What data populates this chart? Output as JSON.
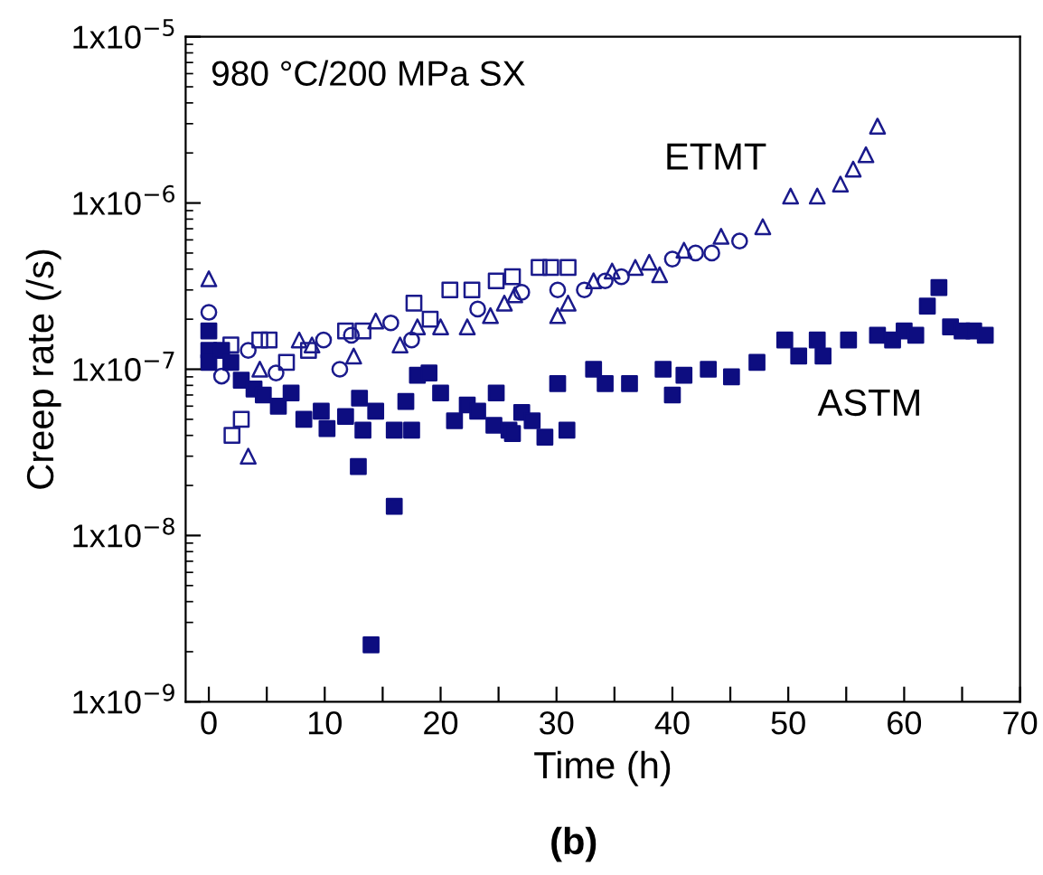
{
  "chart_data": {
    "type": "scatter",
    "title": "980 °C/200 MPa SX",
    "xlabel": "Time (h)",
    "ylabel": "Creep rate (/s)",
    "log": "y",
    "xlim": [
      -2,
      70
    ],
    "ylim": [
      1e-09,
      1e-05
    ],
    "xticks": [
      0,
      {
        "value": 5,
        "label": null
      },
      10,
      {
        "value": 15,
        "label": null
      },
      20,
      {
        "value": 25,
        "label": null
      },
      30,
      {
        "value": 35,
        "label": null
      },
      40,
      {
        "value": 45,
        "label": null
      },
      50,
      {
        "value": 55,
        "label": null
      },
      60,
      {
        "value": 65,
        "label": null
      },
      70
    ],
    "yticks": [
      {
        "value": 1e-09,
        "label": "1x10$^{−9}$"
      },
      {
        "value": 1e-08,
        "label": "1x10$^{−8}$"
      },
      {
        "value": 1e-07,
        "label": "1x10$^{−7}$"
      },
      {
        "value": 1e-06,
        "label": "1x10$^{−6}$"
      },
      {
        "value": 1e-05,
        "label": "1x10$^{−5}$"
      }
    ],
    "grid": false,
    "legend": false,
    "series": [
      {
        "color": "#1a1a8c",
        "marker": "triangle",
        "x": [
          0,
          3.4,
          4.4,
          7.8,
          8.9,
          12.5,
          14.4,
          16.5,
          18,
          20,
          22.3,
          24.3,
          25.5,
          26.4,
          30.1,
          31,
          33.2,
          34.8,
          36.8,
          38,
          38.9,
          41,
          44.2,
          47.8,
          50.2,
          52.5,
          54.5,
          55.6,
          56.7,
          57.7
        ],
        "values": [
          3.5e-07,
          3e-08,
          1e-07,
          1.5e-07,
          1.4e-07,
          1.2e-07,
          1.95e-07,
          1.4e-07,
          1.8e-07,
          1.8e-07,
          1.8e-07,
          2.1e-07,
          2.5e-07,
          2.8e-07,
          2.1e-07,
          2.5e-07,
          3.4e-07,
          3.9e-07,
          4.1e-07,
          4.4e-07,
          3.7e-07,
          5.2e-07,
          6.3e-07,
          7.2e-07,
          1.1e-06,
          1.1e-06,
          1.3e-06,
          1.6e-06,
          1.95e-06,
          2.9e-06
        ]
      },
      {
        "color": "#1a1a8c",
        "marker": "circle",
        "x": [
          0,
          1.1,
          3.4,
          5.8,
          9.9,
          11.3,
          12.3,
          15.7,
          17.5,
          23.2,
          27,
          30.1,
          32.4,
          34.2,
          35.6,
          40,
          42,
          43.4,
          45.8
        ],
        "values": [
          2.2e-07,
          9.1e-08,
          1.3e-07,
          9.5e-08,
          1.5e-07,
          1e-07,
          1.6e-07,
          1.9e-07,
          1.5e-07,
          2.3e-07,
          2.9e-07,
          3e-07,
          3e-07,
          3.4e-07,
          3.6e-07,
          4.6e-07,
          5e-07,
          5e-07,
          5.9e-07
        ]
      },
      {
        "color": "#1a1a8c",
        "marker": "square",
        "x": [
          1.9,
          2.0,
          2.8,
          4.4,
          5.2,
          6.7,
          8.6,
          11.8,
          13.3,
          17.7,
          19.1,
          20.8,
          22.7,
          24.8,
          26.2,
          28.5,
          29.5,
          31
        ],
        "values": [
          1.4e-07,
          4e-08,
          5e-08,
          1.5e-07,
          1.5e-07,
          1.1e-07,
          1.3e-07,
          1.7e-07,
          1.7e-07,
          2.5e-07,
          2e-07,
          3e-07,
          3e-07,
          3.4e-07,
          3.6e-07,
          4.1e-07,
          4.1e-07,
          4.1e-07
        ]
      },
      {
        "color": "#0d0d80",
        "marker": "square",
        "x": [
          0,
          0,
          0,
          1.1,
          1.9,
          2.8,
          3.9,
          4.7,
          6,
          7.1,
          8.2,
          9.7,
          10.2,
          11.8,
          12.9,
          13,
          13.3,
          14,
          14.4,
          16,
          16,
          17,
          17.5,
          18,
          19,
          20,
          21.2,
          22.3,
          23.2,
          24.6,
          24.8,
          25.9,
          26.2,
          27,
          27.9,
          29,
          30.1,
          30.9,
          33.2,
          34.2,
          36.3,
          39.2,
          40,
          41,
          43.1,
          45.1,
          47.3,
          49.7,
          50.9,
          52.5,
          53,
          55.2,
          57.7,
          59,
          60,
          61,
          62,
          63,
          64,
          65,
          66,
          67
        ],
        "values": [
          1.7e-07,
          1.3e-07,
          1.1e-07,
          1.3e-07,
          1.1e-07,
          8.6e-08,
          7.6e-08,
          7e-08,
          6e-08,
          7.2e-08,
          5e-08,
          5.6e-08,
          4.4e-08,
          5.2e-08,
          2.6e-08,
          6.7e-08,
          4.3e-08,
          2.2e-09,
          5.6e-08,
          1.5e-08,
          4.3e-08,
          6.4e-08,
          4.3e-08,
          9.2e-08,
          9.5e-08,
          7.2e-08,
          4.9e-08,
          6.1e-08,
          5.6e-08,
          4.6e-08,
          7.2e-08,
          4.3e-08,
          4.1e-08,
          5.5e-08,
          4.9e-08,
          3.9e-08,
          8.2e-08,
          4.3e-08,
          1e-07,
          8.2e-08,
          8.2e-08,
          1e-07,
          7e-08,
          9.2e-08,
          1e-07,
          9e-08,
          1.1e-07,
          1.5e-07,
          1.2e-07,
          1.5e-07,
          1.2e-07,
          1.5e-07,
          1.6e-07,
          1.5e-07,
          1.7e-07,
          1.6e-07,
          2.4e-07,
          3.1e-07,
          1.8e-07,
          1.7e-07,
          1.7e-07,
          1.6e-07
        ]
      }
    ],
    "annotations": [
      "ETMT",
      "ASTM",
      "(b)"
    ]
  }
}
